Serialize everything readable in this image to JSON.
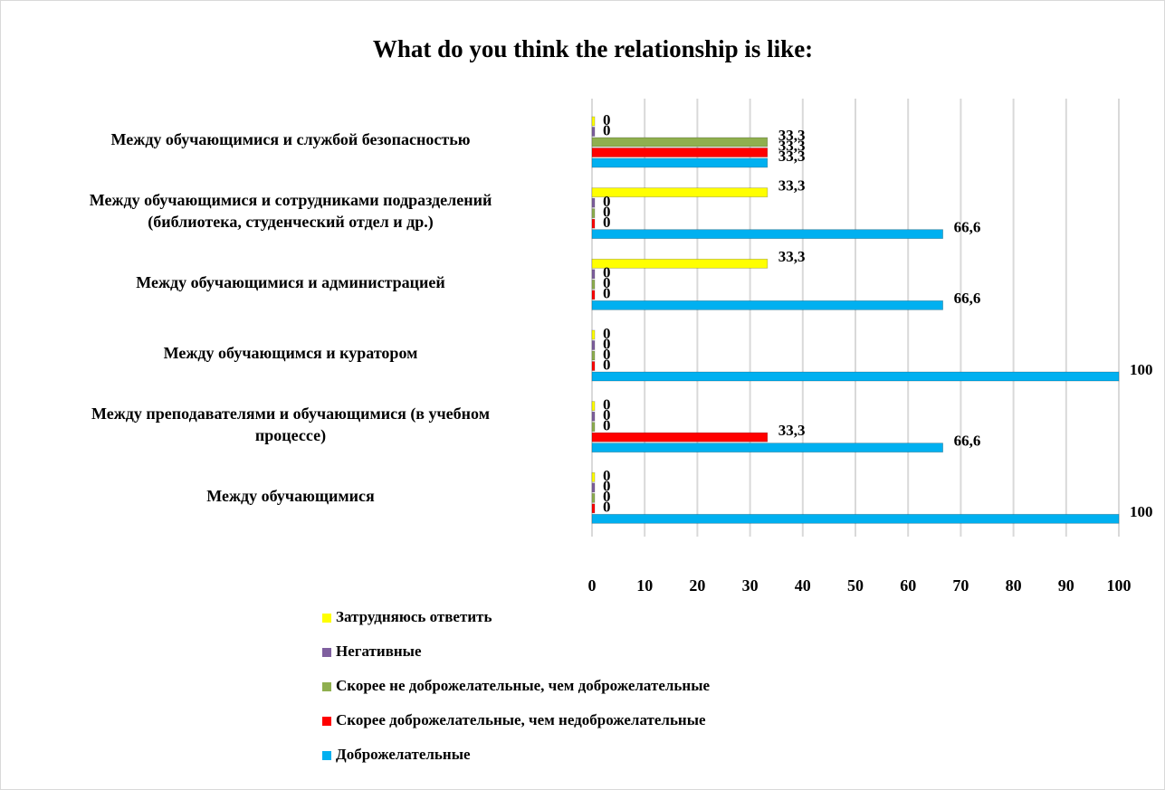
{
  "chart_data": {
    "type": "bar",
    "orientation": "horizontal",
    "title": "What do you think the relationship is like:",
    "categories": [
      "Между обучающимися и службой безопасностью",
      "Между обучающимися и сотрудниками подразделений\n(библиотека, студенческий отдел и др.)",
      "Между обучающимися и администрацией",
      "Между обучающимся и куратором",
      "Между преподавателями и обучающимися (в учебном\nпроцессе)",
      "Между обучающимися"
    ],
    "series": [
      {
        "name": "Затрудняюсь ответить",
        "color": "#ffff00",
        "values": [
          0,
          33.3,
          33.3,
          0,
          0,
          0
        ],
        "value_labels": [
          "0",
          "33,3",
          "33,3",
          "0",
          "0",
          "0"
        ]
      },
      {
        "name": "Негативные",
        "color": "#7f5f9f",
        "values": [
          0,
          0,
          0,
          0,
          0,
          0
        ],
        "value_labels": [
          "0",
          "0",
          "0",
          "0",
          "0",
          "0"
        ]
      },
      {
        "name": "Скорее не доброжелательные, чем доброжелательные",
        "color": "#8faf4f",
        "values": [
          33.3,
          0,
          0,
          0,
          0,
          0
        ],
        "value_labels": [
          "33,3",
          "0",
          "0",
          "0",
          "0",
          "0"
        ]
      },
      {
        "name": "Скорее доброжелательные, чем недоброжелательные",
        "color": "#ff0000",
        "values": [
          33.3,
          0,
          0,
          0,
          33.3,
          0
        ],
        "value_labels": [
          "33,3",
          "0",
          "0",
          "0",
          "33,3",
          "0"
        ]
      },
      {
        "name": "Доброжелательные",
        "color": "#00b0f0",
        "values": [
          33.3,
          66.6,
          66.6,
          100,
          66.6,
          100
        ],
        "value_labels": [
          "33,3",
          "66,6",
          "66,6",
          "100",
          "66,6",
          "100"
        ]
      }
    ],
    "xlim": [
      0,
      100
    ],
    "xticks": [
      0,
      10,
      20,
      30,
      40,
      50,
      60,
      70,
      80,
      90,
      100
    ],
    "grid": true,
    "legend": "bottom"
  }
}
